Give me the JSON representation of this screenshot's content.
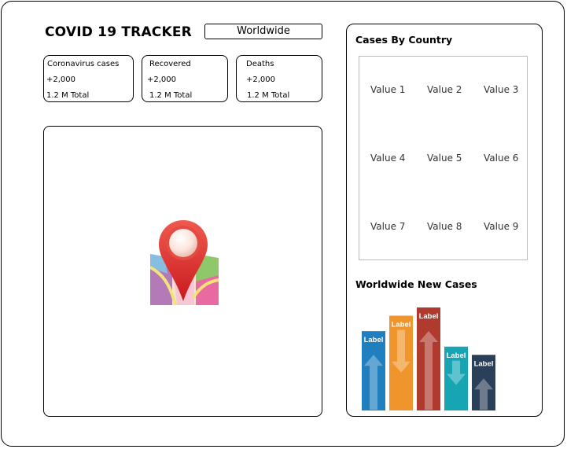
{
  "app": {
    "title": "COVID 19 TRACKER"
  },
  "region_selector": {
    "value": "Worldwide"
  },
  "stats": [
    {
      "label": "Coronavirus cases",
      "today": "+2,000",
      "total": "1.2 M Total"
    },
    {
      "label": "Recovered",
      "today": "+2,000",
      "total": "1.2 M Total"
    },
    {
      "label": "Deaths",
      "today": "+2,000",
      "total": "1.2 M Total"
    }
  ],
  "map": {
    "icon": "map-pin-icon"
  },
  "country_table": {
    "title": "Cases By Country",
    "values": [
      "Value 1",
      "Value 2",
      "Value 3",
      "Value 4",
      "Value 5",
      "Value 6",
      "Value 7",
      "Value 8",
      "Value 9"
    ]
  },
  "new_cases_chart": {
    "title": "Worldwide New Cases",
    "bars": [
      {
        "label": "Label",
        "direction": "up",
        "color": "#1f7fbf",
        "level": 0.77
      },
      {
        "label": "Label",
        "direction": "down",
        "color": "#f0952b",
        "level": 0.92
      },
      {
        "label": "Label",
        "direction": "up",
        "color": "#b03a2e",
        "level": 1.0
      },
      {
        "label": "Label",
        "direction": "down",
        "color": "#17a5b4",
        "level": 0.62
      },
      {
        "label": "Label",
        "direction": "up",
        "color": "#2a3f58",
        "level": 0.54
      }
    ]
  }
}
